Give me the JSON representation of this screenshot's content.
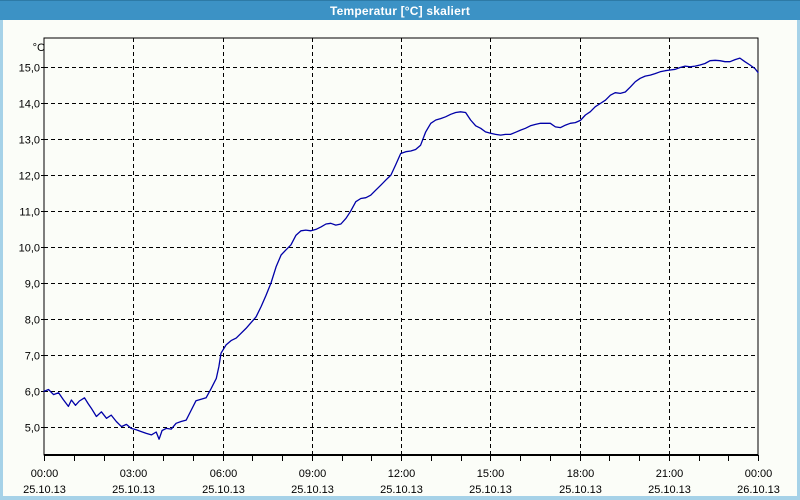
{
  "window": {
    "title": "Temperatur [°C] skaliert"
  },
  "colors": {
    "titlebar_bg": "#3c92c5",
    "titlebar_text": "#ffffff",
    "window_frame": "#a6d2e8",
    "content_bg": "#fbfdf8",
    "grid": "#000000",
    "axis": "#000000",
    "tick_text": "#000000",
    "series_line": "#0000a8"
  },
  "chart_data": {
    "type": "line",
    "title": "Temperatur [°C] skaliert",
    "ylabel_unit": "°C",
    "grid": "on",
    "legend": "none",
    "xlim_hours": [
      0,
      24
    ],
    "ylim": [
      4.22,
      15.81
    ],
    "x_minor_tick_hours": 1,
    "y_ticks": [
      {
        "value": 15,
        "label": "15,0"
      },
      {
        "value": 14,
        "label": "14,0"
      },
      {
        "value": 13,
        "label": "13,0"
      },
      {
        "value": 12,
        "label": "12,0"
      },
      {
        "value": 11,
        "label": "11,0"
      },
      {
        "value": 10,
        "label": "10,0"
      },
      {
        "value": 9,
        "label": "9,0"
      },
      {
        "value": 8,
        "label": "8,0"
      },
      {
        "value": 7,
        "label": "7,0"
      },
      {
        "value": 6,
        "label": "6,0"
      },
      {
        "value": 5,
        "label": "5,0"
      }
    ],
    "x_ticks": [
      {
        "hour": 0,
        "time": "00:00",
        "date": "25.10.13"
      },
      {
        "hour": 3,
        "time": "03:00",
        "date": "25.10.13"
      },
      {
        "hour": 6,
        "time": "06:00",
        "date": "25.10.13"
      },
      {
        "hour": 9,
        "time": "09:00",
        "date": "25.10.13"
      },
      {
        "hour": 12,
        "time": "12:00",
        "date": "25.10.13"
      },
      {
        "hour": 15,
        "time": "15:00",
        "date": "25.10.13"
      },
      {
        "hour": 18,
        "time": "18:00",
        "date": "25.10.13"
      },
      {
        "hour": 21,
        "time": "21:00",
        "date": "25.10.13"
      },
      {
        "hour": 24,
        "time": "00:00",
        "date": "26.10.13"
      }
    ],
    "series": [
      {
        "name": "Temperatur",
        "color": "#0000a8",
        "points": [
          [
            0.0,
            5.99
          ],
          [
            0.15,
            6.04
          ],
          [
            0.32,
            5.9
          ],
          [
            0.49,
            5.95
          ],
          [
            0.65,
            5.76
          ],
          [
            0.82,
            5.57
          ],
          [
            0.92,
            5.75
          ],
          [
            1.06,
            5.6
          ],
          [
            1.19,
            5.72
          ],
          [
            1.36,
            5.81
          ],
          [
            1.49,
            5.64
          ],
          [
            1.59,
            5.52
          ],
          [
            1.76,
            5.29
          ],
          [
            1.93,
            5.42
          ],
          [
            2.1,
            5.24
          ],
          [
            2.26,
            5.33
          ],
          [
            2.43,
            5.15
          ],
          [
            2.6,
            5.01
          ],
          [
            2.77,
            5.07
          ],
          [
            2.93,
            4.96
          ],
          [
            3.1,
            4.92
          ],
          [
            3.27,
            4.87
          ],
          [
            3.44,
            4.82
          ],
          [
            3.61,
            4.78
          ],
          [
            3.77,
            4.86
          ],
          [
            3.87,
            4.66
          ],
          [
            3.97,
            4.9
          ],
          [
            4.11,
            4.96
          ],
          [
            4.28,
            4.94
          ],
          [
            4.44,
            5.1
          ],
          [
            4.61,
            5.15
          ],
          [
            4.78,
            5.19
          ],
          [
            4.95,
            5.47
          ],
          [
            5.11,
            5.73
          ],
          [
            5.28,
            5.77
          ],
          [
            5.45,
            5.81
          ],
          [
            5.62,
            6.07
          ],
          [
            5.79,
            6.35
          ],
          [
            5.88,
            6.68
          ],
          [
            5.95,
            7.05
          ],
          [
            6.12,
            7.28
          ],
          [
            6.29,
            7.4
          ],
          [
            6.46,
            7.47
          ],
          [
            6.62,
            7.6
          ],
          [
            6.79,
            7.74
          ],
          [
            6.96,
            7.9
          ],
          [
            7.13,
            8.06
          ],
          [
            7.3,
            8.35
          ],
          [
            7.46,
            8.65
          ],
          [
            7.63,
            9.0
          ],
          [
            7.8,
            9.45
          ],
          [
            7.97,
            9.78
          ],
          [
            8.13,
            9.92
          ],
          [
            8.3,
            10.06
          ],
          [
            8.47,
            10.33
          ],
          [
            8.64,
            10.45
          ],
          [
            8.8,
            10.47
          ],
          [
            8.97,
            10.45
          ],
          [
            9.14,
            10.49
          ],
          [
            9.31,
            10.56
          ],
          [
            9.48,
            10.64
          ],
          [
            9.64,
            10.66
          ],
          [
            9.81,
            10.61
          ],
          [
            9.98,
            10.64
          ],
          [
            10.15,
            10.8
          ],
          [
            10.31,
            11.0
          ],
          [
            10.48,
            11.26
          ],
          [
            10.65,
            11.35
          ],
          [
            10.82,
            11.37
          ],
          [
            10.98,
            11.44
          ],
          [
            11.15,
            11.58
          ],
          [
            11.32,
            11.72
          ],
          [
            11.49,
            11.86
          ],
          [
            11.66,
            12.0
          ],
          [
            11.82,
            12.28
          ],
          [
            11.99,
            12.6
          ],
          [
            12.16,
            12.65
          ],
          [
            12.33,
            12.67
          ],
          [
            12.49,
            12.71
          ],
          [
            12.66,
            12.83
          ],
          [
            12.83,
            13.2
          ],
          [
            13.0,
            13.44
          ],
          [
            13.17,
            13.53
          ],
          [
            13.33,
            13.57
          ],
          [
            13.5,
            13.62
          ],
          [
            13.67,
            13.69
          ],
          [
            13.84,
            13.74
          ],
          [
            14.0,
            13.76
          ],
          [
            14.17,
            13.74
          ],
          [
            14.34,
            13.53
          ],
          [
            14.51,
            13.37
          ],
          [
            14.68,
            13.3
          ],
          [
            14.84,
            13.2
          ],
          [
            15.01,
            13.16
          ],
          [
            15.18,
            13.13
          ],
          [
            15.35,
            13.11
          ],
          [
            15.51,
            13.13
          ],
          [
            15.68,
            13.13
          ],
          [
            15.85,
            13.19
          ],
          [
            16.02,
            13.25
          ],
          [
            16.18,
            13.3
          ],
          [
            16.35,
            13.37
          ],
          [
            16.52,
            13.41
          ],
          [
            16.69,
            13.44
          ],
          [
            16.86,
            13.44
          ],
          [
            17.02,
            13.44
          ],
          [
            17.19,
            13.34
          ],
          [
            17.36,
            13.32
          ],
          [
            17.53,
            13.39
          ],
          [
            17.69,
            13.44
          ],
          [
            17.86,
            13.46
          ],
          [
            18.03,
            13.52
          ],
          [
            18.2,
            13.67
          ],
          [
            18.36,
            13.76
          ],
          [
            18.53,
            13.9
          ],
          [
            18.7,
            13.99
          ],
          [
            18.87,
            14.08
          ],
          [
            19.04,
            14.22
          ],
          [
            19.2,
            14.29
          ],
          [
            19.37,
            14.27
          ],
          [
            19.54,
            14.31
          ],
          [
            19.71,
            14.45
          ],
          [
            19.87,
            14.59
          ],
          [
            20.04,
            14.69
          ],
          [
            20.21,
            14.75
          ],
          [
            20.38,
            14.78
          ],
          [
            20.54,
            14.82
          ],
          [
            20.71,
            14.87
          ],
          [
            20.88,
            14.9
          ],
          [
            21.05,
            14.92
          ],
          [
            21.22,
            14.94
          ],
          [
            21.38,
            14.99
          ],
          [
            21.55,
            15.03
          ],
          [
            21.72,
            15.01
          ],
          [
            21.89,
            15.03
          ],
          [
            22.05,
            15.06
          ],
          [
            22.22,
            15.1
          ],
          [
            22.39,
            15.18
          ],
          [
            22.56,
            15.19
          ],
          [
            22.72,
            15.18
          ],
          [
            22.89,
            15.15
          ],
          [
            23.06,
            15.15
          ],
          [
            23.23,
            15.21
          ],
          [
            23.39,
            15.25
          ],
          [
            23.56,
            15.15
          ],
          [
            23.73,
            15.06
          ],
          [
            23.9,
            14.96
          ],
          [
            24.0,
            14.85
          ]
        ]
      }
    ]
  }
}
